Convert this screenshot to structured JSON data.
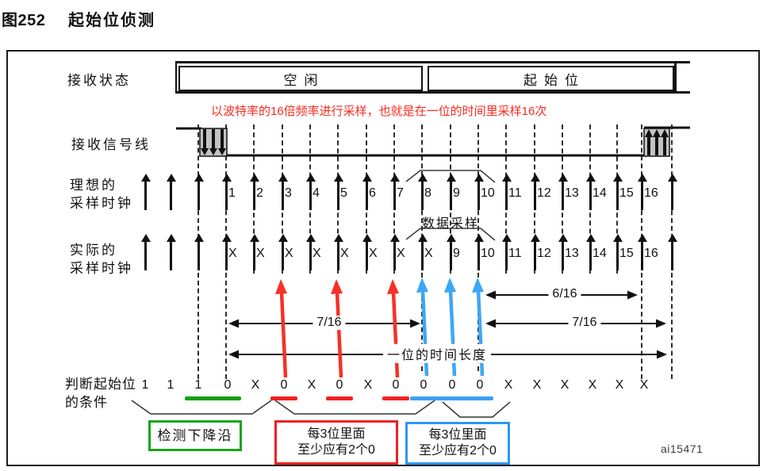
{
  "figure": {
    "label": "图252",
    "title": "起始位侦测",
    "footer_code": "ai15471"
  },
  "annotation": {
    "text": "以波特率的16倍频率进行采样，也就是在一位的时间里采样16次",
    "color": "#f92a1e"
  },
  "row_labels": {
    "receive_state": "接收状态",
    "receive_signal": "接收信号线",
    "ideal_clock_line1": "理想的",
    "ideal_clock_line2": "采样时钟",
    "actual_clock_line1": "实际的",
    "actual_clock_line2": "采样时钟",
    "judge_line1": "判断起始位",
    "judge_line2": "的条件"
  },
  "states": {
    "idle": "空闲",
    "start": "起始位"
  },
  "clocks": {
    "ideal_labels": [
      "1",
      "2",
      "3",
      "4",
      "5",
      "6",
      "7",
      "8",
      "9",
      "10",
      "11",
      "12",
      "13",
      "14",
      "15",
      "16"
    ],
    "actual_labels": [
      "X",
      "X",
      "X",
      "X",
      "X",
      "X",
      "X",
      "X",
      "9",
      "10",
      "11",
      "12",
      "13",
      "14",
      "15",
      "16"
    ],
    "data_sampling_label": "数据采样"
  },
  "measurements": {
    "left_7_16": "7/16",
    "mid_6_16": "6/16",
    "right_7_16": "7/16",
    "bit_length": "一位的时间长度"
  },
  "bits": {
    "values": [
      "1",
      "1",
      "1",
      "0",
      "X",
      "0",
      "X",
      "0",
      "X",
      "0",
      "0",
      "0",
      "0",
      "X",
      "X",
      "X",
      "X",
      "X",
      "X"
    ],
    "underlines": [
      null,
      null,
      "green",
      "green",
      null,
      "red",
      null,
      "red",
      null,
      "red",
      "blue",
      "blue",
      "blue",
      null,
      null,
      null,
      null,
      null,
      null
    ]
  },
  "underline_colors": {
    "green": "#14a014",
    "red": "#f52020",
    "blue": "#3aa1f3"
  },
  "callouts": {
    "green": {
      "text": "检测下降沿",
      "border_color": "#17a517"
    },
    "red": {
      "line1": "每3位里面",
      "line2": "至少应有2个0",
      "border_color": "#ee2121"
    },
    "blue": {
      "line1": "每3位里面",
      "line2": "至少应有2个0",
      "border_color": "#2e97ef"
    }
  },
  "arrow_colors": {
    "red": "#f63127",
    "blue": "#3ba7f6"
  }
}
